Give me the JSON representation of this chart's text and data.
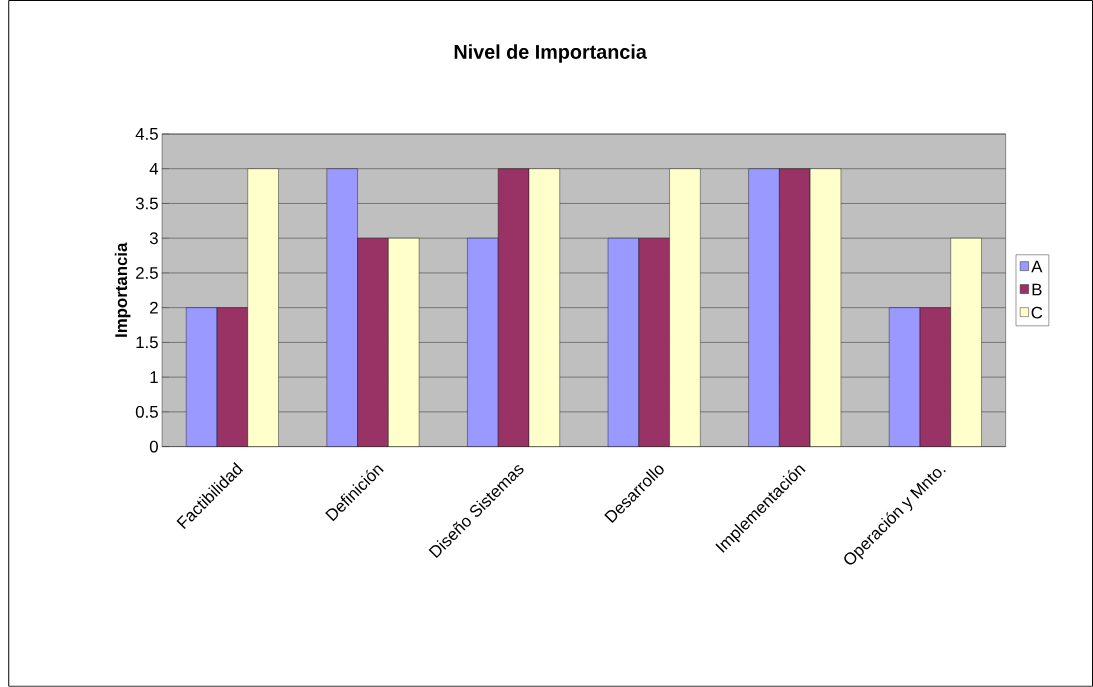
{
  "chart_data": {
    "type": "bar",
    "title": "Nivel de Importancia",
    "ylabel": "Importancia",
    "categories": [
      "Factibilidad",
      "Definición",
      "Diseño Sistemas",
      "Desarrollo",
      "Implementación",
      "Operación y Mnto."
    ],
    "series": [
      {
        "name": "A",
        "color": "#9999ff",
        "values": [
          2,
          4,
          3,
          3,
          4,
          2
        ]
      },
      {
        "name": "B",
        "color": "#993366",
        "values": [
          2,
          3,
          4,
          3,
          4,
          2
        ]
      },
      {
        "name": "C",
        "color": "#ffffcc",
        "values": [
          4,
          3,
          4,
          4,
          4,
          3
        ]
      }
    ],
    "ylim": [
      0,
      4.5
    ],
    "yticks": [
      0,
      0.5,
      1,
      1.5,
      2,
      2.5,
      3,
      3.5,
      4,
      4.5
    ],
    "grid": "y",
    "legend": "right"
  }
}
